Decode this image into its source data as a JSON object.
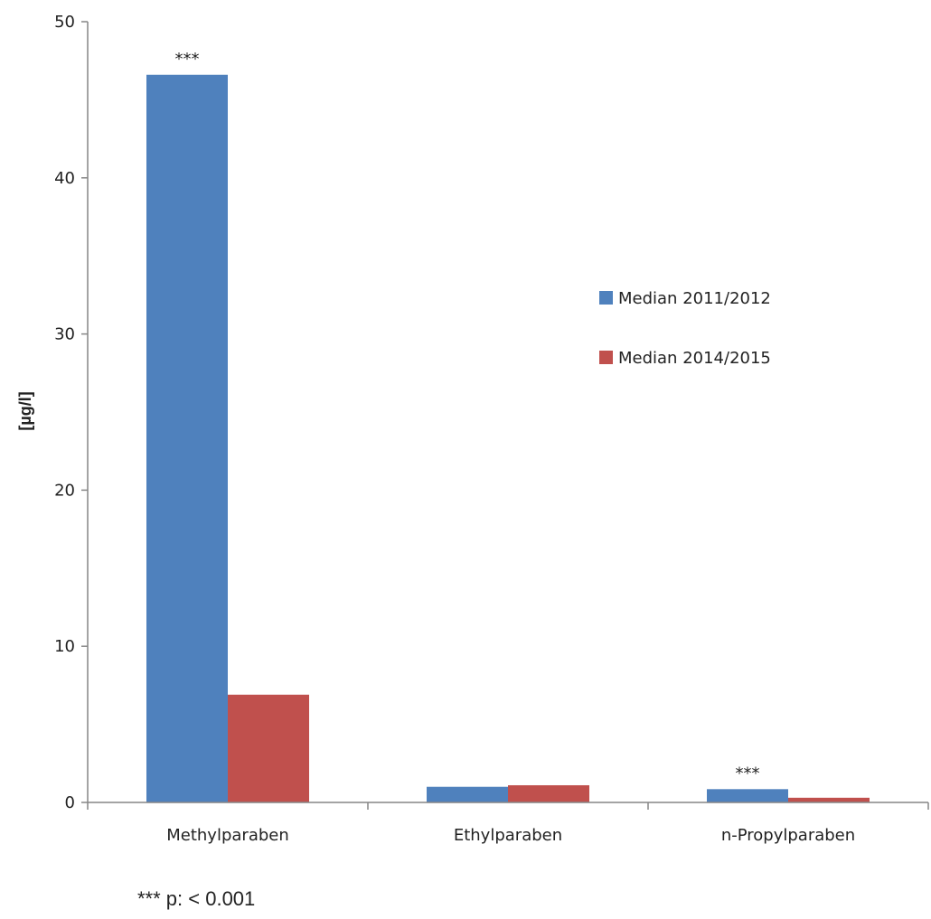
{
  "chart_data": {
    "type": "bar",
    "categories": [
      "Methylparaben",
      "Ethylparaben",
      "n-Propylparaben"
    ],
    "series": [
      {
        "name": "Median 2011/2012",
        "values": [
          46.6,
          1.0,
          0.85
        ],
        "color": "#4f81bd"
      },
      {
        "name": "Median 2014/2015",
        "values": [
          6.9,
          1.1,
          0.3
        ],
        "color": "#c0504d"
      }
    ],
    "ylabel": "[µg/l]",
    "xlabel": "",
    "ylim": [
      0,
      50
    ],
    "yticks": [
      0,
      10,
      20,
      30,
      40,
      50
    ],
    "grid": false,
    "legend_position": "right",
    "annotations": [
      {
        "category": "Methylparaben",
        "series": 0,
        "text": "***"
      },
      {
        "category": "n-Propylparaben",
        "series": 0,
        "text": "***"
      }
    ],
    "footnote": "*** p: < 0.001"
  }
}
